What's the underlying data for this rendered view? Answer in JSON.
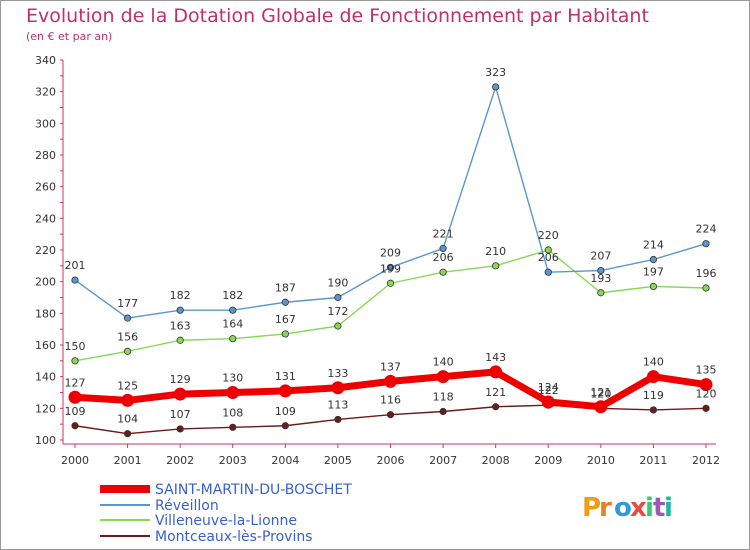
{
  "chart_data": {
    "type": "line",
    "title": "Evolution de la Dotation Globale de Fonctionnement par Habitant",
    "subtitle": "(en € et par an)",
    "xlabel": "",
    "ylabel": "",
    "categories": [
      "2000",
      "2001",
      "2002",
      "2003",
      "2004",
      "2005",
      "2006",
      "2007",
      "2008",
      "2009",
      "2010",
      "2011",
      "2012"
    ],
    "ylim": [
      100,
      340
    ],
    "yticks": [
      100,
      120,
      140,
      160,
      180,
      200,
      220,
      240,
      260,
      280,
      300,
      320,
      340
    ],
    "grid": false,
    "legend_position": "bottom-left",
    "series": [
      {
        "name": "SAINT-MARTIN-DU-BOSCHET",
        "color": "#ee0000",
        "values": [
          127,
          125,
          129,
          130,
          131,
          133,
          137,
          140,
          143,
          124,
          121,
          140,
          135
        ]
      },
      {
        "name": "Réveillon",
        "color": "#5b96cc",
        "values": [
          201,
          177,
          182,
          182,
          187,
          190,
          209,
          221,
          323,
          206,
          207,
          214,
          224
        ]
      },
      {
        "name": "Villeneuve-la-Lionne",
        "color": "#88d855",
        "values": [
          150,
          156,
          163,
          164,
          167,
          172,
          199,
          206,
          210,
          220,
          193,
          197,
          196
        ]
      },
      {
        "name": "Montceaux-lès-Provins",
        "color": "#6a1b1b",
        "values": [
          109,
          104,
          107,
          108,
          109,
          113,
          116,
          118,
          121,
          122,
          120,
          119,
          120
        ]
      }
    ]
  },
  "logo": {
    "text": "Proxiti",
    "colors": [
      "#f39c12",
      "#e67e22",
      "#3498db",
      "#e74c3c",
      "#2ecc71",
      "#9b59b6",
      "#1abc9c"
    ]
  }
}
